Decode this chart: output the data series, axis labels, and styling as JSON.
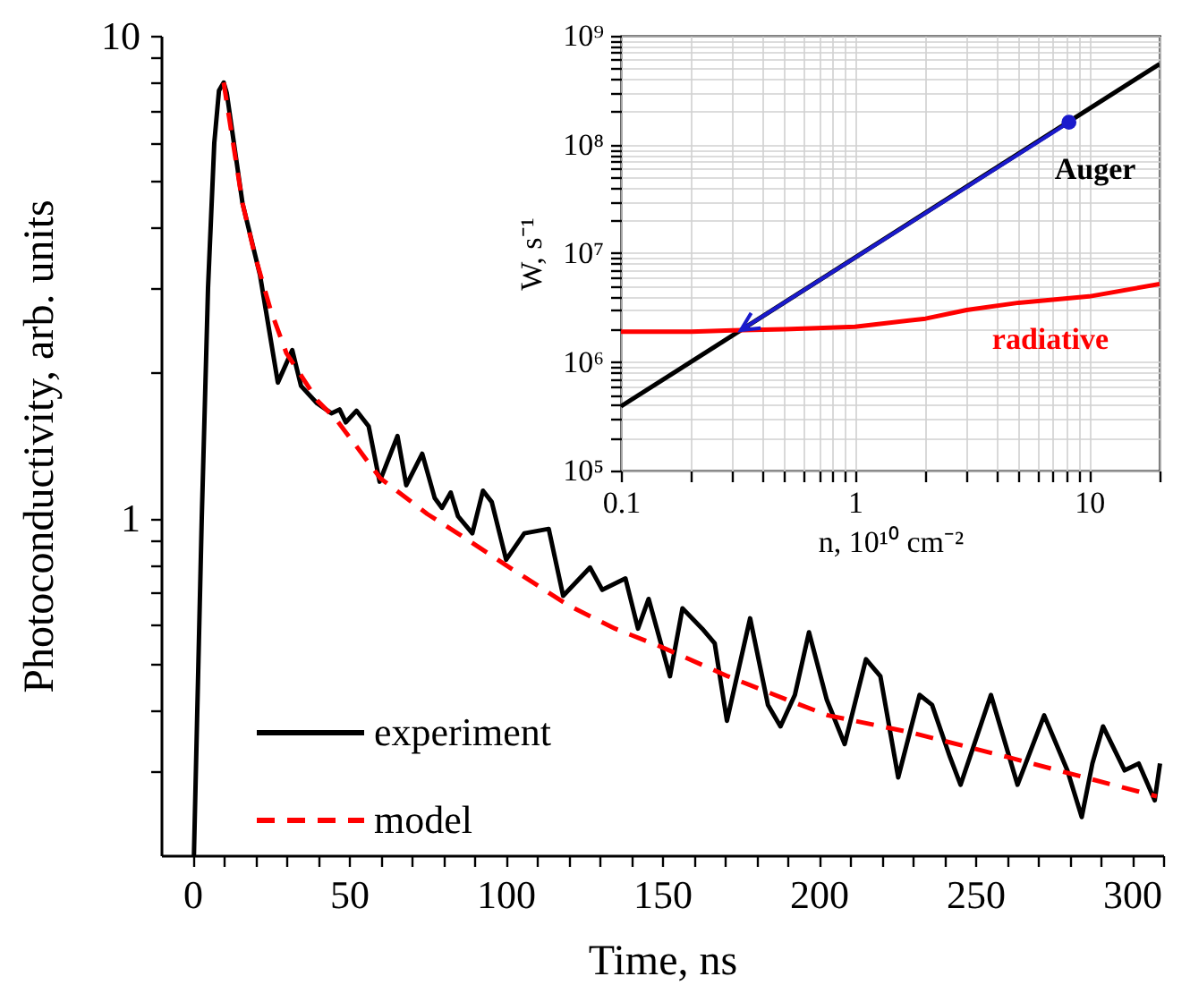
{
  "chart_data": [
    {
      "type": "line",
      "xlabel": "Time, ns",
      "ylabel": "Photoconductivity, arb. units",
      "log": "y",
      "xlim": [
        -10,
        310
      ],
      "ylim": [
        0.2,
        10
      ],
      "xticks": [
        0,
        {
          "value": 10,
          "label": null
        },
        {
          "value": 20,
          "label": null
        },
        {
          "value": 30,
          "label": null
        },
        {
          "value": 40,
          "label": null
        },
        50,
        {
          "value": 60,
          "label": null
        },
        {
          "value": 70,
          "label": null
        },
        {
          "value": 80,
          "label": null
        },
        {
          "value": 90,
          "label": null
        },
        100,
        {
          "value": 110,
          "label": null
        },
        {
          "value": 120,
          "label": null
        },
        {
          "value": 130,
          "label": null
        },
        {
          "value": 140,
          "label": null
        },
        150,
        {
          "value": 160,
          "label": null
        },
        {
          "value": 170,
          "label": null
        },
        {
          "value": 180,
          "label": null
        },
        {
          "value": 190,
          "label": null
        },
        200,
        {
          "value": 210,
          "label": null
        },
        {
          "value": 220,
          "label": null
        },
        {
          "value": 230,
          "label": null
        },
        {
          "value": 240,
          "label": null
        },
        250,
        {
          "value": 260,
          "label": null
        },
        {
          "value": 270,
          "label": null
        },
        {
          "value": 280,
          "label": null
        },
        {
          "value": 290,
          "label": null
        },
        300,
        {
          "value": 310,
          "label": null
        }
      ],
      "yticks": [
        {
          "value": 0.3,
          "label": null
        },
        {
          "value": 0.4,
          "label": null
        },
        {
          "value": 0.5,
          "label": null
        },
        {
          "value": 0.6,
          "label": null
        },
        {
          "value": 0.7,
          "label": null
        },
        {
          "value": 0.8,
          "label": null
        },
        {
          "value": 0.9,
          "label": null
        },
        1,
        {
          "value": 2,
          "label": null
        },
        {
          "value": 3,
          "label": null
        },
        {
          "value": 4,
          "label": null
        },
        {
          "value": 5,
          "label": null
        },
        {
          "value": 6,
          "label": null
        },
        {
          "value": 7,
          "label": null
        },
        {
          "value": 8,
          "label": null
        },
        {
          "value": 9,
          "label": null
        },
        10
      ],
      "legend": "bottom left",
      "series": [
        {
          "name": "experiment",
          "color": "#000000",
          "line_style": "solid",
          "x": [
            0.5,
            3,
            5,
            7,
            8.5,
            10,
            11,
            16,
            21.6,
            27.3,
            31.9,
            34.7,
            39.8,
            44.4,
            47,
            49,
            52.4,
            56.3,
            59.8,
            65.5,
            68.3,
            73.4,
            77.4,
            79.7,
            82.5,
            84.8,
            89.4,
            92.8,
            95.6,
            100.2,
            106,
            113.8,
            118.4,
            127,
            130.9,
            138.3,
            142.3,
            145.7,
            152.5,
            156.5,
            162.8,
            166.8,
            170.7,
            178.1,
            183.8,
            187.8,
            192.4,
            196.9,
            202.6,
            208.3,
            215.1,
            219.7,
            225.4,
            232.2,
            236.2,
            241.9,
            245.3,
            255,
            263.5,
            272,
            279.4,
            284,
            287.4,
            290.8,
            297.7,
            302.2,
            307.3,
            309
          ],
          "values": [
            0.2,
            1.0,
            3,
            6,
            7.7,
            8,
            7.6,
            4.5,
            3.19,
            1.91,
            2.23,
            1.88,
            1.73,
            1.65,
            1.68,
            1.58,
            1.67,
            1.55,
            1.19,
            1.48,
            1.17,
            1.36,
            1.1,
            1.05,
            1.13,
            1.01,
            0.93,
            1.14,
            1.08,
            0.82,
            0.93,
            0.95,
            0.69,
            0.79,
            0.71,
            0.75,
            0.59,
            0.68,
            0.47,
            0.65,
            0.59,
            0.55,
            0.38,
            0.62,
            0.41,
            0.37,
            0.43,
            0.58,
            0.42,
            0.34,
            0.51,
            0.47,
            0.29,
            0.43,
            0.41,
            0.32,
            0.28,
            0.43,
            0.28,
            0.39,
            0.3,
            0.24,
            0.31,
            0.37,
            0.3,
            0.31,
            0.26,
            0.31
          ]
        },
        {
          "name": "model",
          "color": "#ff0000",
          "line_style": "dashed",
          "x": [
            10,
            13,
            16,
            20,
            25,
            30,
            40,
            46,
            60,
            75,
            87,
            100,
            120,
            135,
            150,
            171,
            190,
            203,
            229,
            260,
            285,
            308
          ],
          "values": [
            8,
            6,
            4.5,
            3.5,
            2.7,
            2.2,
            1.75,
            1.6,
            1.21,
            1.02,
            0.91,
            0.8,
            0.66,
            0.59,
            0.54,
            0.47,
            0.42,
            0.39,
            0.36,
            0.32,
            0.29,
            0.265
          ]
        }
      ]
    },
    {
      "type": "line",
      "xlabel": "n, 10¹⁰ cm⁻²",
      "ylabel": "W, s⁻¹",
      "log": "xy",
      "xlim": [
        0.1,
        20
      ],
      "ylim": [
        100000,
        1000000000
      ],
      "xticks": [
        0.1,
        {
          "value": 0.2,
          "label": null
        },
        {
          "value": 0.3,
          "label": null
        },
        {
          "value": 0.4,
          "label": null
        },
        {
          "value": 0.5,
          "label": null
        },
        {
          "value": 0.6,
          "label": null
        },
        {
          "value": 0.7,
          "label": null
        },
        {
          "value": 0.8,
          "label": null
        },
        {
          "value": 0.9,
          "label": null
        },
        1,
        {
          "value": 2,
          "label": null
        },
        {
          "value": 3,
          "label": null
        },
        {
          "value": 4,
          "label": null
        },
        {
          "value": 5,
          "label": null
        },
        {
          "value": 6,
          "label": null
        },
        {
          "value": 7,
          "label": null
        },
        {
          "value": 8,
          "label": null
        },
        {
          "value": 9,
          "label": null
        },
        10,
        {
          "value": 20,
          "label": null
        }
      ],
      "yticks": [
        {
          "value": 100000,
          "label": "10⁵"
        },
        {
          "value": 200000,
          "label": null
        },
        {
          "value": 300000,
          "label": null
        },
        {
          "value": 400000,
          "label": null
        },
        {
          "value": 500000,
          "label": null
        },
        {
          "value": 600000,
          "label": null
        },
        {
          "value": 700000,
          "label": null
        },
        {
          "value": 800000,
          "label": null
        },
        {
          "value": 900000,
          "label": null
        },
        {
          "value": 1000000,
          "label": "10⁶"
        },
        {
          "value": 2000000,
          "label": null
        },
        {
          "value": 3000000,
          "label": null
        },
        {
          "value": 4000000,
          "label": null
        },
        {
          "value": 5000000,
          "label": null
        },
        {
          "value": 6000000,
          "label": null
        },
        {
          "value": 7000000,
          "label": null
        },
        {
          "value": 8000000,
          "label": null
        },
        {
          "value": 9000000,
          "label": null
        },
        {
          "value": 10000000,
          "label": "10⁷"
        },
        {
          "value": 20000000,
          "label": null
        },
        {
          "value": 30000000,
          "label": null
        },
        {
          "value": 40000000,
          "label": null
        },
        {
          "value": 50000000,
          "label": null
        },
        {
          "value": 60000000,
          "label": null
        },
        {
          "value": 70000000,
          "label": null
        },
        {
          "value": 80000000,
          "label": null
        },
        {
          "value": 90000000,
          "label": null
        },
        {
          "value": 100000000,
          "label": "10⁸"
        },
        {
          "value": 200000000,
          "label": null
        },
        {
          "value": 300000000,
          "label": null
        },
        {
          "value": 400000000,
          "label": null
        },
        {
          "value": 500000000,
          "label": null
        },
        {
          "value": 600000000,
          "label": null
        },
        {
          "value": 700000000,
          "label": null
        },
        {
          "value": 800000000,
          "label": null
        },
        {
          "value": 900000000,
          "label": null
        },
        {
          "value": 1000000000,
          "label": "10⁹"
        }
      ],
      "grid": true,
      "series": [
        {
          "name": "Auger",
          "color": "#000000",
          "x": [
            0.1,
            20
          ],
          "values": [
            390000,
            550000000
          ]
        },
        {
          "name": "radiative",
          "color": "#ff0000",
          "x": [
            0.1,
            0.2,
            0.3,
            0.5,
            1,
            2,
            3,
            5,
            10,
            20
          ],
          "values": [
            1900000,
            1900000,
            1950000,
            2000000,
            2100000,
            2500000,
            3000000,
            3500000,
            4000000,
            5200000
          ]
        },
        {
          "type": "scatter",
          "color": "#1a1acc",
          "marker": "circle",
          "x": [
            8.2
          ],
          "values": [
            160000000
          ]
        }
      ]
    }
  ]
}
